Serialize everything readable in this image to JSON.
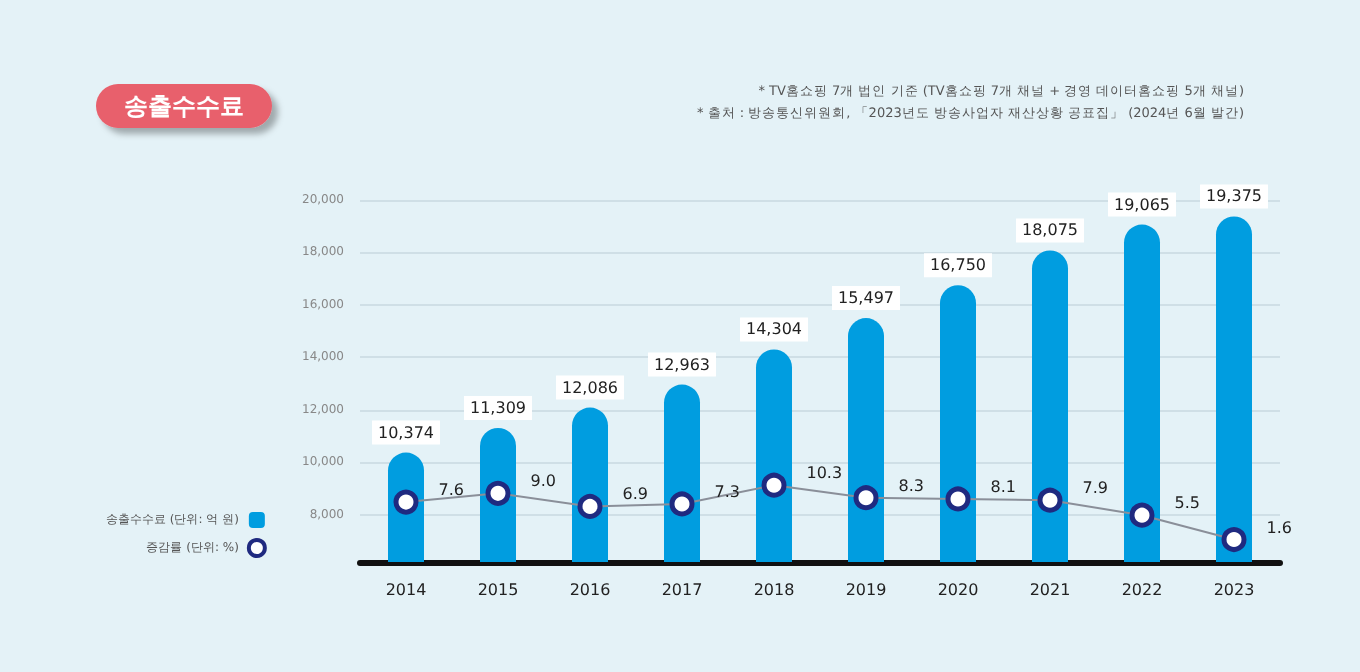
{
  "chart_data": {
    "type": "bar",
    "title": "송출수수료",
    "annotations": [
      "* TV홈쇼핑 7개 법인 기준 (TV홈쇼핑 7개 채널 + 경영 데이터홈쇼핑 5개 채널)",
      "* 출처 : 방송통신위원회, 「2023년도 방송사업자 재산상황 공표집」 (2024년 6월 발간)"
    ],
    "categories": [
      "2014",
      "2015",
      "2016",
      "2017",
      "2018",
      "2019",
      "2020",
      "2021",
      "2022",
      "2023"
    ],
    "series": [
      {
        "name": "송출수수료 (단위: 억 원)",
        "color": "#009de0",
        "values": [
          10374,
          11309,
          12086,
          12963,
          14304,
          15497,
          16750,
          18075,
          19065,
          19375
        ],
        "value_labels": [
          "10,374",
          "11,309",
          "12,086",
          "12,963",
          "14,304",
          "15,497",
          "16,750",
          "18,075",
          "19,065",
          "19,375"
        ]
      },
      {
        "name": "증감률 (단위: %)",
        "type": "line",
        "axis": "y2",
        "color": "#1f2a80",
        "marker": "circle",
        "values": [
          7.6,
          9.0,
          6.9,
          7.3,
          10.3,
          8.3,
          8.1,
          7.9,
          5.5,
          1.6
        ],
        "value_labels": [
          "7.6",
          "9.0",
          "6.9",
          "7.3",
          "10.3",
          "8.3",
          "8.1",
          "7.9",
          "5.5",
          "1.6"
        ]
      }
    ],
    "ylim": [
      6200,
      20000
    ],
    "yticks": [
      {
        "value": 6200,
        "label": null
      },
      {
        "value": 8000,
        "label": "8,000"
      },
      {
        "value": 10000,
        "label": "10,000"
      },
      {
        "value": 12000,
        "label": "12,000"
      },
      {
        "value": 14000,
        "label": "14,000"
      },
      {
        "value": 16000,
        "label": "16,000"
      },
      {
        "value": 18000,
        "label": "18,000"
      },
      {
        "value": 20000,
        "label": "20,000"
      }
    ],
    "y2lim": [
      -2,
      56
    ],
    "grid": "y",
    "legend": "bottom left"
  }
}
